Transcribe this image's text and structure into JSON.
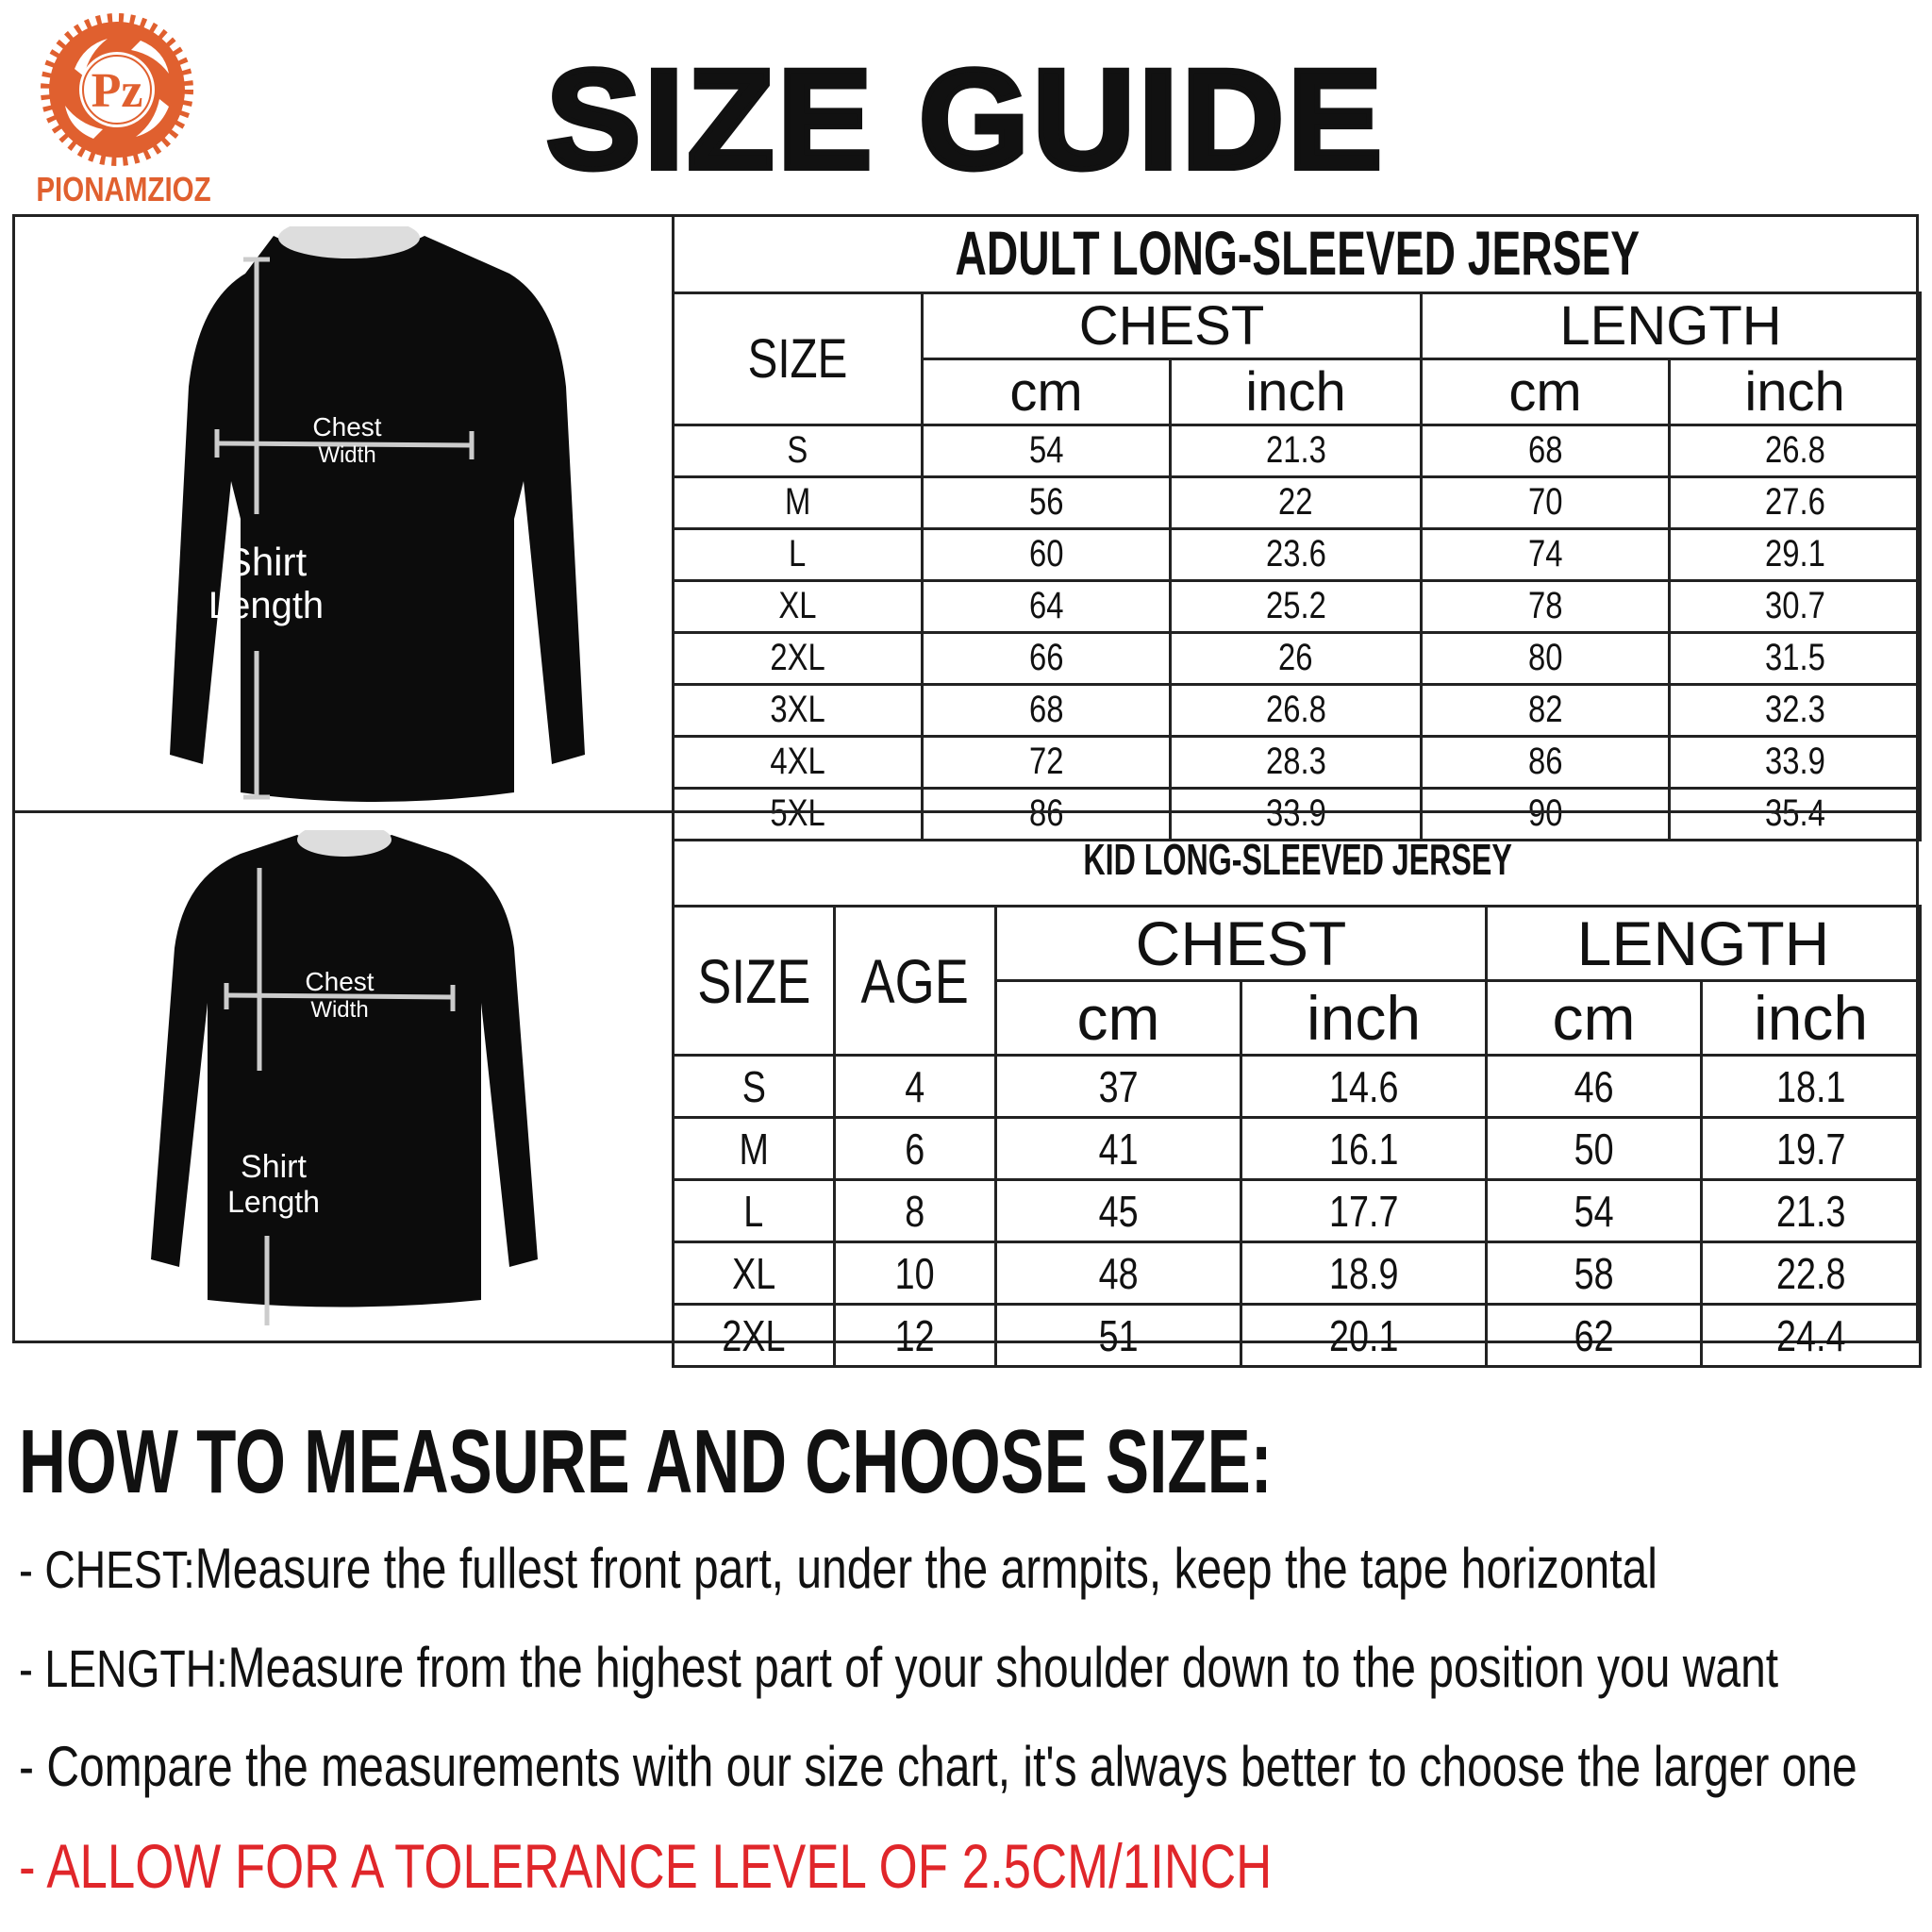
{
  "brand": {
    "name": "PIONAMZIOZ",
    "logo_letters": "Pz",
    "color": "#e0602f"
  },
  "title": "SIZE GUIDE",
  "adult": {
    "title": "ADULT LONG-SLEEVED JERSEY",
    "headers": {
      "size": "SIZE",
      "chest": "CHEST",
      "length": "LENGTH",
      "cm": "cm",
      "inch": "inch"
    },
    "rows": [
      [
        "S",
        "54",
        "21.3",
        "68",
        "26.8"
      ],
      [
        "M",
        "56",
        "22",
        "70",
        "27.6"
      ],
      [
        "L",
        "60",
        "23.6",
        "74",
        "29.1"
      ],
      [
        "XL",
        "64",
        "25.2",
        "78",
        "30.7"
      ],
      [
        "2XL",
        "66",
        "26",
        "80",
        "31.5"
      ],
      [
        "3XL",
        "68",
        "26.8",
        "82",
        "32.3"
      ],
      [
        "4XL",
        "72",
        "28.3",
        "86",
        "33.9"
      ],
      [
        "5XL",
        "86",
        "33.9",
        "90",
        "35.4"
      ]
    ],
    "diagram": {
      "chest": "Chest",
      "width": "Width",
      "shirt": "Shirt",
      "length": "Length"
    }
  },
  "kid": {
    "title": "KID LONG-SLEEVED JERSEY",
    "headers": {
      "size": "SIZE",
      "age": "AGE",
      "chest": "CHEST",
      "length": "LENGTH",
      "cm": "cm",
      "inch": "inch"
    },
    "rows": [
      [
        "S",
        "4",
        "37",
        "14.6",
        "46",
        "18.1"
      ],
      [
        "M",
        "6",
        "41",
        "16.1",
        "50",
        "19.7"
      ],
      [
        "L",
        "8",
        "45",
        "17.7",
        "54",
        "21.3"
      ],
      [
        "XL",
        "10",
        "48",
        "18.9",
        "58",
        "22.8"
      ],
      [
        "2XL",
        "12",
        "51",
        "20.1",
        "62",
        "24.4"
      ]
    ],
    "diagram": {
      "chest": "Chest",
      "width": "Width",
      "shirt": "Shirt",
      "length": "Length"
    }
  },
  "howto": {
    "heading": "HOW TO MEASURE AND CHOOSE SIZE:",
    "chest_label": "- CHEST:",
    "chest_text": "Measure the fullest front part, under the armpits, keep the tape horizontal",
    "length_label": "- LENGTH:",
    "length_text": "Measure from the highest part of your shoulder down to the position you want",
    "compare": "- Compare the measurements with our size chart, it's always better to choose the larger one",
    "tolerance": "- ALLOW FOR A TOLERANCE LEVEL OF 2.5CM/1INCH",
    "tolerance_color": "#e0262a"
  }
}
